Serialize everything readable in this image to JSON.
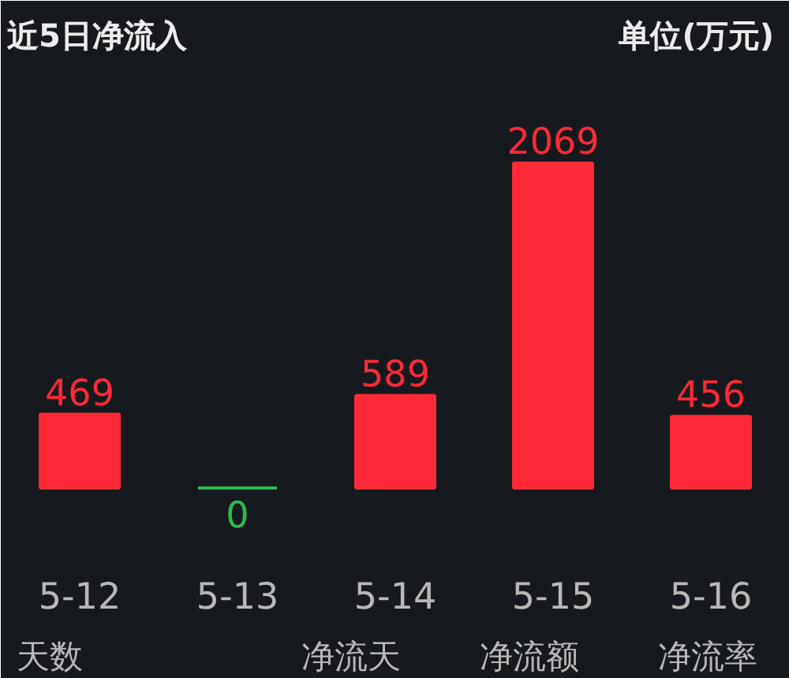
{
  "chart_data": {
    "type": "bar",
    "title": "近5日净流入",
    "subtitle": "单位(万元)",
    "categories": [
      "5-12",
      "5-13",
      "5-14",
      "5-15",
      "5-16"
    ],
    "values": [
      469,
      0,
      589,
      2069,
      456
    ],
    "colors": [
      "#fb2a36",
      "#2fb84d",
      "#fb2a36",
      "#fb2a36",
      "#fb2a36"
    ],
    "data_labels": true,
    "annotations": [
      "天数",
      "净流天",
      "净流额",
      "净流率"
    ]
  }
}
